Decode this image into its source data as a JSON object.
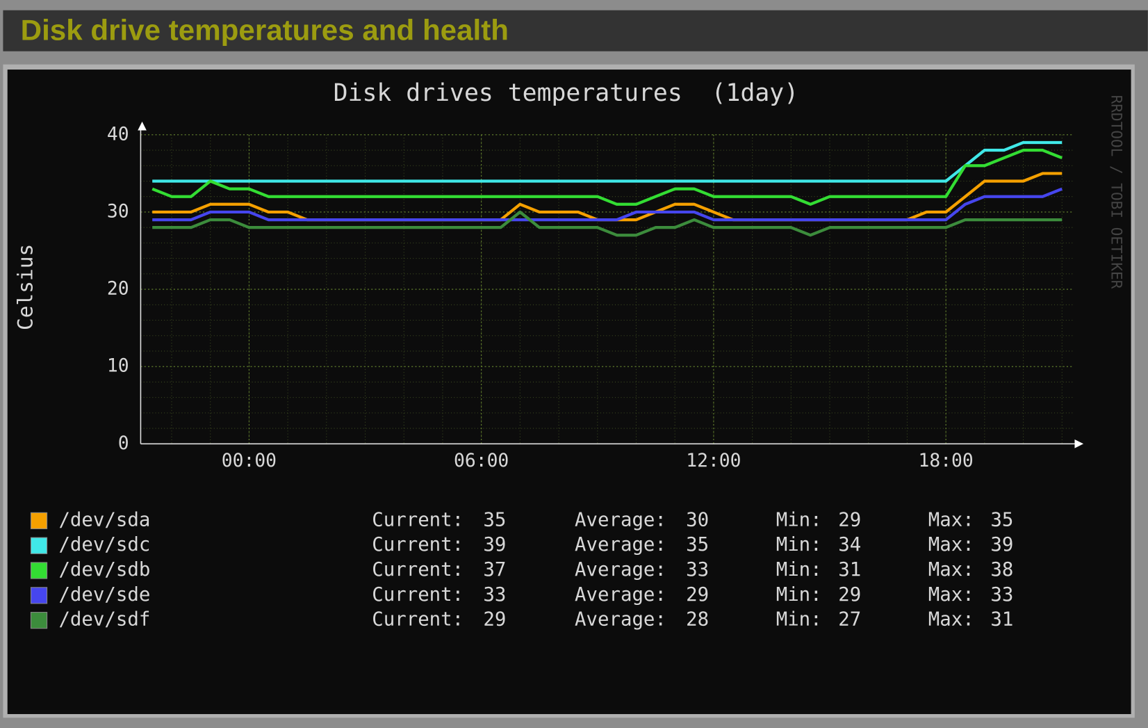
{
  "header": {
    "title": "Disk drive temperatures and health"
  },
  "chart_data": {
    "type": "line",
    "title": "Disk drives temperatures  (1day)",
    "ylabel": "Celsius",
    "watermark": "RRDTOOL / TOBI OETIKER",
    "x": [
      -2.5,
      -2,
      -1.5,
      -1,
      -0.5,
      0,
      0.5,
      1,
      1.5,
      2,
      2.5,
      3,
      3.5,
      4,
      4.5,
      5,
      5.5,
      6,
      6.5,
      7,
      7.5,
      8,
      8.5,
      9,
      9.5,
      10,
      10.5,
      11,
      11.5,
      12,
      12.5,
      13,
      13.5,
      14,
      14.5,
      15,
      15.5,
      16,
      16.5,
      17,
      17.5,
      18,
      18.5,
      19,
      19.5,
      20,
      20.5,
      21
    ],
    "xlim": [
      -2.8,
      21.27
    ],
    "xticks": [
      {
        "value": 0,
        "label": "00:00"
      },
      {
        "value": 6,
        "label": "06:00"
      },
      {
        "value": 12,
        "label": "12:00"
      },
      {
        "value": 18,
        "label": "18:00"
      }
    ],
    "ylim": [
      0,
      40
    ],
    "yticks": [
      0,
      10,
      20,
      30,
      40
    ],
    "grid": true,
    "stat_labels": [
      "Current:",
      "Average:",
      "Min:",
      "Max:"
    ],
    "series": [
      {
        "name": "/dev/sda",
        "color": "#f5a000",
        "values": [
          30,
          30,
          30,
          31,
          31,
          31,
          30,
          30,
          29,
          29,
          29,
          29,
          29,
          29,
          29,
          29,
          29,
          29,
          29,
          31,
          30,
          30,
          30,
          29,
          29,
          29,
          30,
          31,
          31,
          30,
          29,
          29,
          29,
          29,
          29,
          29,
          29,
          29,
          29,
          29,
          30,
          30,
          32,
          34,
          34,
          34,
          35,
          35
        ],
        "stats": [
          35,
          30,
          29,
          35
        ]
      },
      {
        "name": "/dev/sdc",
        "color": "#40e8e8",
        "values": [
          34,
          34,
          34,
          34,
          34,
          34,
          34,
          34,
          34,
          34,
          34,
          34,
          34,
          34,
          34,
          34,
          34,
          34,
          34,
          34,
          34,
          34,
          34,
          34,
          34,
          34,
          34,
          34,
          34,
          34,
          34,
          34,
          34,
          34,
          34,
          34,
          34,
          34,
          34,
          34,
          34,
          34,
          36,
          38,
          38,
          39,
          39,
          39
        ],
        "stats": [
          39,
          35,
          34,
          39
        ]
      },
      {
        "name": "/dev/sdb",
        "color": "#33dd33",
        "values": [
          33,
          32,
          32,
          34,
          33,
          33,
          32,
          32,
          32,
          32,
          32,
          32,
          32,
          32,
          32,
          32,
          32,
          32,
          32,
          32,
          32,
          32,
          32,
          32,
          31,
          31,
          32,
          33,
          33,
          32,
          32,
          32,
          32,
          32,
          31,
          32,
          32,
          32,
          32,
          32,
          32,
          32,
          36,
          36,
          37,
          38,
          38,
          37
        ],
        "stats": [
          37,
          33,
          31,
          38
        ]
      },
      {
        "name": "/dev/sde",
        "color": "#4646ee",
        "values": [
          29,
          29,
          29,
          30,
          30,
          30,
          29,
          29,
          29,
          29,
          29,
          29,
          29,
          29,
          29,
          29,
          29,
          29,
          29,
          29,
          29,
          29,
          29,
          29,
          29,
          30,
          30,
          30,
          30,
          29,
          29,
          29,
          29,
          29,
          29,
          29,
          29,
          29,
          29,
          29,
          29,
          29,
          31,
          32,
          32,
          32,
          32,
          33
        ],
        "stats": [
          33,
          29,
          29,
          33
        ]
      },
      {
        "name": "/dev/sdf",
        "color": "#3c8c3c",
        "values": [
          28,
          28,
          28,
          29,
          29,
          28,
          28,
          28,
          28,
          28,
          28,
          28,
          28,
          28,
          28,
          28,
          28,
          28,
          28,
          30,
          28,
          28,
          28,
          28,
          27,
          27,
          28,
          28,
          29,
          28,
          28,
          28,
          28,
          28,
          27,
          28,
          28,
          28,
          28,
          28,
          28,
          28,
          29,
          29,
          29,
          29,
          29,
          29
        ],
        "stats": [
          29,
          28,
          27,
          31
        ]
      }
    ]
  }
}
